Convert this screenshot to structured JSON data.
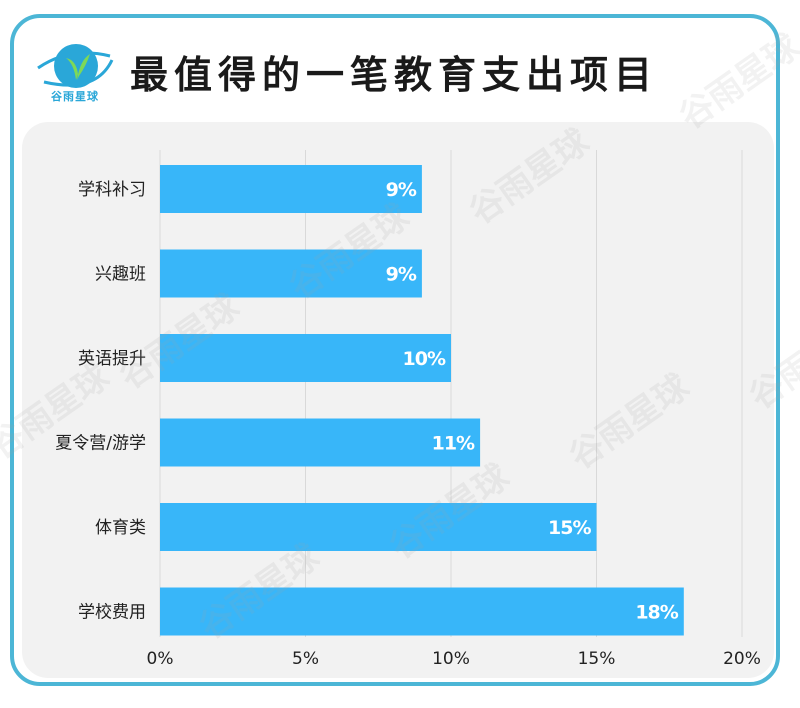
{
  "title": "最值得的一笔教育支出项目",
  "logo_text": "谷雨星球",
  "watermark_text": "谷雨星球",
  "colors": {
    "bar": "#38b6f9",
    "frame": "#4cb6d6",
    "panel": "#f2f2f2"
  },
  "chart_data": {
    "type": "bar",
    "orientation": "horizontal",
    "categories": [
      "学科补习",
      "兴趣班",
      "英语提升",
      "夏令营/游学",
      "体育类",
      "学校费用"
    ],
    "values": [
      9,
      9,
      10,
      11,
      15,
      18
    ],
    "value_labels": [
      "9%",
      "9%",
      "10%",
      "11%",
      "15%",
      "18%"
    ],
    "xlim": [
      0,
      20
    ],
    "xticks": [
      0,
      5,
      10,
      15,
      20
    ],
    "xtick_labels": [
      "0%",
      "5%",
      "10%",
      "15%",
      "20%"
    ],
    "grid": true
  }
}
